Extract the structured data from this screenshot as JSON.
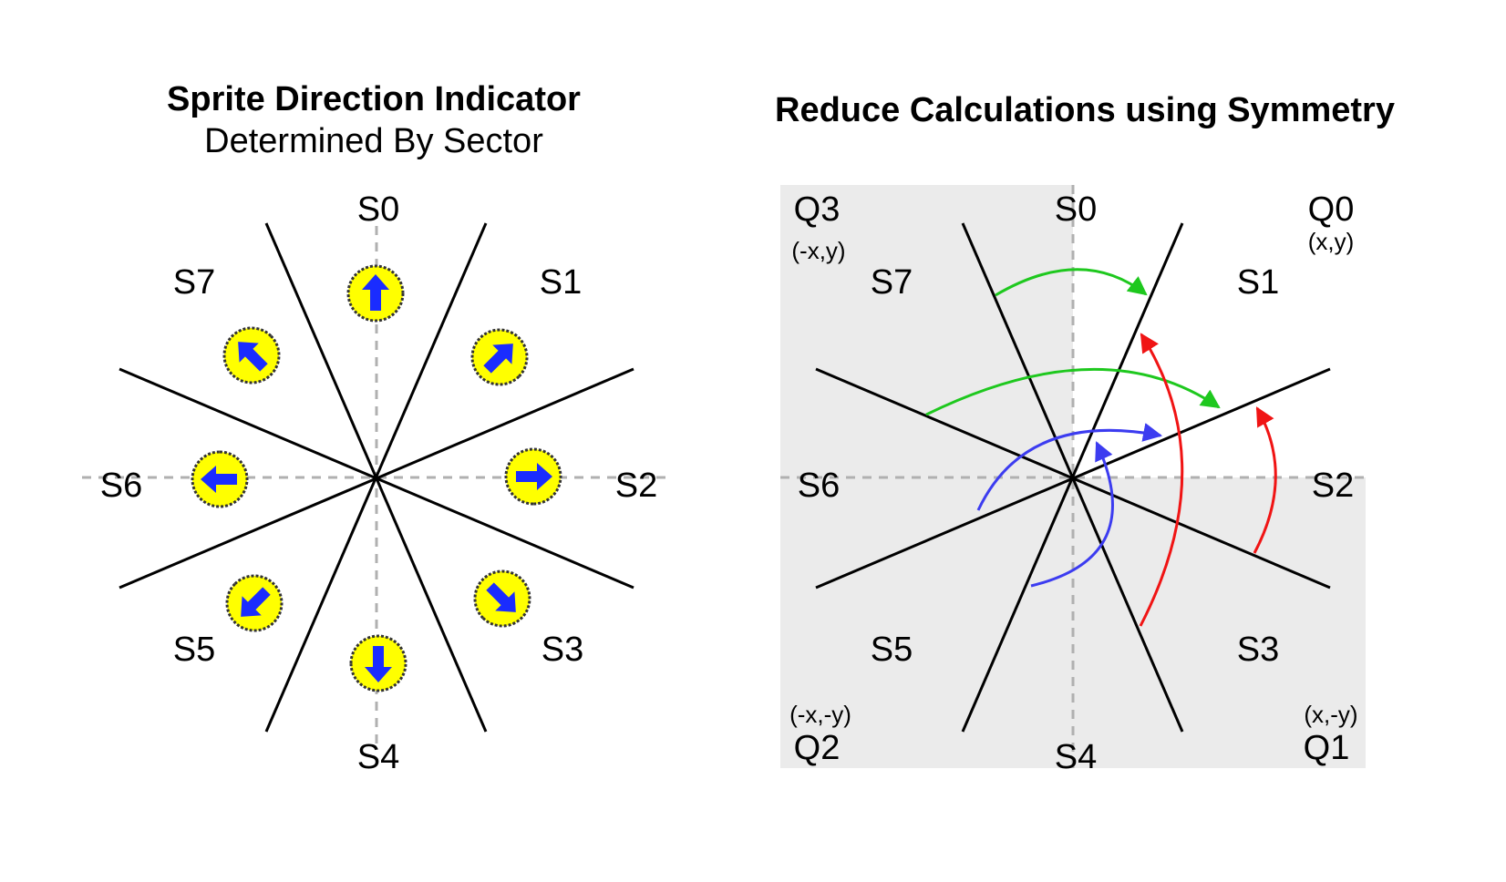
{
  "left_panel": {
    "title": "Sprite Direction Indicator",
    "subtitle": "Determined By Sector",
    "sectors": [
      "S0",
      "S1",
      "S2",
      "S3",
      "S4",
      "S5",
      "S6",
      "S7"
    ],
    "indicator_colors": {
      "ring": "#e0e000",
      "fill": "#ffff00",
      "arrow": "#1a2cff",
      "outline": "#333333"
    },
    "indicator_icons": [
      "arrow-up-icon",
      "arrow-up-right-icon",
      "arrow-right-icon",
      "arrow-down-right-icon",
      "arrow-down-icon",
      "arrow-down-left-icon",
      "arrow-left-icon",
      "arrow-up-left-icon"
    ]
  },
  "right_panel": {
    "title": "Reduce Calculations using Symmetry",
    "sectors": [
      "S0",
      "S1",
      "S2",
      "S3",
      "S4",
      "S5",
      "S6",
      "S7"
    ],
    "quadrants": [
      {
        "name": "Q0",
        "coords": "(x,y)"
      },
      {
        "name": "Q1",
        "coords": "(x,-y)"
      },
      {
        "name": "Q2",
        "coords": "(-x,-y)"
      },
      {
        "name": "Q3",
        "coords": "(-x,y)"
      }
    ],
    "shade_color": "#ebebeb",
    "arrow_colors": {
      "green": "#1ec81e",
      "red": "#f01414",
      "blue": "#3c3cf0"
    }
  }
}
